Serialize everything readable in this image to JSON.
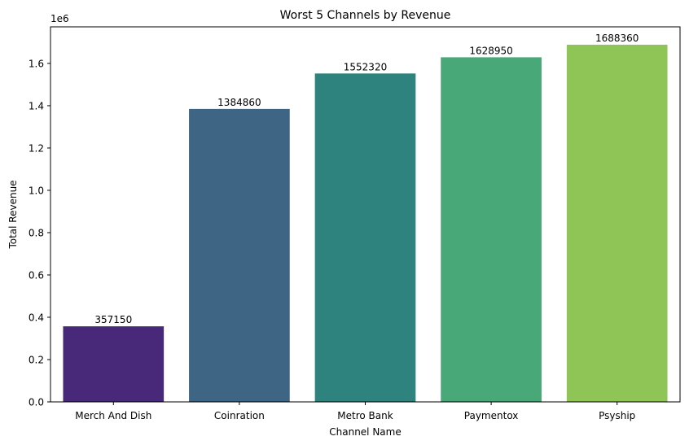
{
  "chart_data": {
    "type": "bar",
    "title": "Worst 5 Channels by Revenue",
    "xlabel": "Channel Name",
    "ylabel": "Total Revenue",
    "y_offset_label": "1e6",
    "categories": [
      "Merch And Dish",
      "Coinration",
      "Metro Bank",
      "Paymentox",
      "Psyship"
    ],
    "values": [
      357150,
      1384860,
      1552320,
      1628950,
      1688360
    ],
    "data_labels": [
      "357150",
      "1384860",
      "1552320",
      "1628950",
      "1688360"
    ],
    "colors": [
      "#482878",
      "#3e6584",
      "#2e837e",
      "#48a878",
      "#8fc557"
    ],
    "ylim": [
      0,
      1772778
    ],
    "yticks": [
      0,
      200000,
      400000,
      600000,
      800000,
      1000000,
      1200000,
      1400000,
      1600000
    ],
    "ytick_labels": [
      "0.0",
      "0.2",
      "0.4",
      "0.6",
      "0.8",
      "1.0",
      "1.2",
      "1.4",
      "1.6"
    ],
    "grid": false,
    "legend": "none"
  }
}
